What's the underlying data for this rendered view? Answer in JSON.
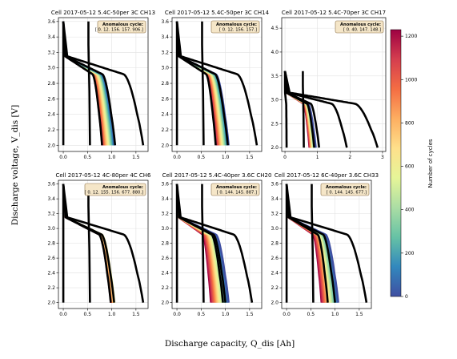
{
  "figure": {
    "xlabel": "Discharge capacity, Q_dis [Ah]",
    "ylabel": "Discharge voltage, V_dis [V]",
    "colorbar": {
      "label": "Number of cycles",
      "ticks": [
        0,
        200,
        400,
        600,
        800,
        1000,
        1200
      ],
      "range": [
        0,
        1230
      ]
    },
    "colormap": [
      "#3f4fa2",
      "#3288bd",
      "#66c2a5",
      "#abdda4",
      "#e6f598",
      "#fee08b",
      "#fdae61",
      "#f46d43",
      "#d53e4f",
      "#9e0142"
    ]
  },
  "chart_data": [
    {
      "type": "line",
      "title": "Cell 2017-05-12 5.4C-50per 3C CH13",
      "annotation_title": "Anomalous cycle:",
      "annotation_text": "[ 0. 12. 156. 157. 906.]",
      "xlim": [
        -0.1,
        1.75
      ],
      "ylim": [
        1.92,
        3.65
      ],
      "xticks": [
        "0.0",
        "0.5",
        "1.0",
        "1.5"
      ],
      "xtick_values": [
        0,
        0.5,
        1.0,
        1.5
      ],
      "yticks": [
        "2.0",
        "2.2",
        "2.4",
        "2.6",
        "2.8",
        "3.0",
        "3.2",
        "3.4",
        "3.6"
      ],
      "ytick_values": [
        2.0,
        2.2,
        2.4,
        2.6,
        2.8,
        3.0,
        3.2,
        3.4,
        3.6
      ],
      "band": {
        "q_min": 0.8,
        "q_max": 1.07,
        "cycles": [
          0,
          1230
        ]
      },
      "anomalous_q": [
        0.0,
        0.52,
        0.8,
        1.07,
        1.65
      ]
    },
    {
      "type": "line",
      "title": "Cell 2017-05-12 5.4C-50per 3C CH14",
      "annotation_title": "Anomalous cycle:",
      "annotation_text": "[ 0. 12. 156. 157.]",
      "xlim": [
        -0.1,
        1.75
      ],
      "ylim": [
        1.92,
        3.65
      ],
      "xticks": [
        "0.0",
        "0.5",
        "1.0",
        "1.5"
      ],
      "xtick_values": [
        0,
        0.5,
        1.0,
        1.5
      ],
      "yticks": [
        "2.0",
        "2.2",
        "2.4",
        "2.6",
        "2.8",
        "3.0",
        "3.2",
        "3.4",
        "3.6"
      ],
      "ytick_values": [
        2.0,
        2.2,
        2.4,
        2.6,
        2.8,
        3.0,
        3.2,
        3.4,
        3.6
      ],
      "band": {
        "q_min": 0.82,
        "q_max": 1.07,
        "cycles": [
          0,
          1230
        ]
      },
      "anomalous_q": [
        0.0,
        0.52,
        0.8,
        1.05,
        1.65
      ]
    },
    {
      "type": "line",
      "title": "Cell 2017-05-12 5.4C-70per 3C CH17",
      "annotation_title": "Anomalous cycle:",
      "annotation_text": "[ 0. 40. 147. 148.]",
      "xlim": [
        -0.1,
        3.1
      ],
      "ylim": [
        1.92,
        4.72
      ],
      "xticks": [
        "0",
        "1",
        "2",
        "3"
      ],
      "xtick_values": [
        0,
        1,
        2,
        3
      ],
      "yticks": [
        "2.0",
        "2.5",
        "3.0",
        "3.5",
        "4.0",
        "4.5"
      ],
      "ytick_values": [
        2.0,
        2.5,
        3.0,
        3.5,
        4.0,
        4.5
      ],
      "band": {
        "q_min": 0.75,
        "q_max": 0.95,
        "cycles": [
          0,
          1230
        ]
      },
      "anomalous_q": [
        0.05,
        0.55,
        0.9,
        1.05,
        1.9,
        2.85
      ]
    },
    {
      "type": "line",
      "title": "Cell 2017-05-12 4C-80per 4C CH6",
      "annotation_title": "Anomalous cycle:",
      "annotation_text": "[ 0. 12. 155. 156. 677. 880.]",
      "xlim": [
        -0.1,
        1.75
      ],
      "ylim": [
        1.92,
        3.65
      ],
      "xticks": [
        "0.0",
        "0.5",
        "1.0",
        "1.5"
      ],
      "xtick_values": [
        0,
        0.5,
        1.0,
        1.5
      ],
      "yticks": [
        "2.0",
        "2.2",
        "2.4",
        "2.6",
        "2.8",
        "3.0",
        "3.2",
        "3.4",
        "3.6"
      ],
      "ytick_values": [
        2.0,
        2.2,
        2.4,
        2.6,
        2.8,
        3.0,
        3.2,
        3.4,
        3.6
      ],
      "band": {
        "q_min": 0.98,
        "q_max": 1.06,
        "cycles": [
          600,
          1230
        ]
      },
      "anomalous_q": [
        0.0,
        0.52,
        0.98,
        1.05,
        1.65
      ]
    },
    {
      "type": "line",
      "title": "Cell 2017-05-12 5.4C-40per 3.6C CH20",
      "annotation_title": "Anomalous cycle:",
      "annotation_text": "[ 0. 144. 145. 887.]",
      "xlim": [
        -0.1,
        1.75
      ],
      "ylim": [
        1.92,
        3.65
      ],
      "xticks": [
        "0.0",
        "0.5",
        "1.0",
        "1.5"
      ],
      "xtick_values": [
        0,
        0.5,
        1.0,
        1.5
      ],
      "yticks": [
        "2.0",
        "2.2",
        "2.4",
        "2.6",
        "2.8",
        "3.0",
        "3.2",
        "3.4",
        "3.6"
      ],
      "ytick_values": [
        2.0,
        2.2,
        2.4,
        2.6,
        2.8,
        3.0,
        3.2,
        3.4,
        3.6
      ],
      "band": {
        "q_min": 0.7,
        "q_max": 1.07,
        "cycles": [
          0,
          1230
        ]
      },
      "anomalous_q": [
        0.0,
        0.52,
        0.95,
        1.0,
        1.55
      ]
    },
    {
      "type": "line",
      "title": "Cell 2017-05-12 6C-40per 3.6C CH33",
      "annotation_title": "Anomalous cycle:",
      "annotation_text": "[ 0. 144. 145. 677.]",
      "xlim": [
        -0.1,
        1.75
      ],
      "ylim": [
        1.92,
        3.65
      ],
      "xticks": [
        "0.0",
        "0.5",
        "1.0",
        "1.5"
      ],
      "xtick_values": [
        0,
        0.5,
        1.0,
        1.5
      ],
      "yticks": [
        "2.0",
        "2.2",
        "2.4",
        "2.6",
        "2.8",
        "3.0",
        "3.2",
        "3.4",
        "3.6"
      ],
      "ytick_values": [
        2.0,
        2.2,
        2.4,
        2.6,
        2.8,
        3.0,
        3.2,
        3.4,
        3.6
      ],
      "band": {
        "q_min": 0.72,
        "q_max": 1.07,
        "cycles": [
          0,
          1230
        ]
      },
      "anomalous_q": [
        0.0,
        0.52,
        0.85,
        1.0,
        1.65
      ]
    }
  ]
}
